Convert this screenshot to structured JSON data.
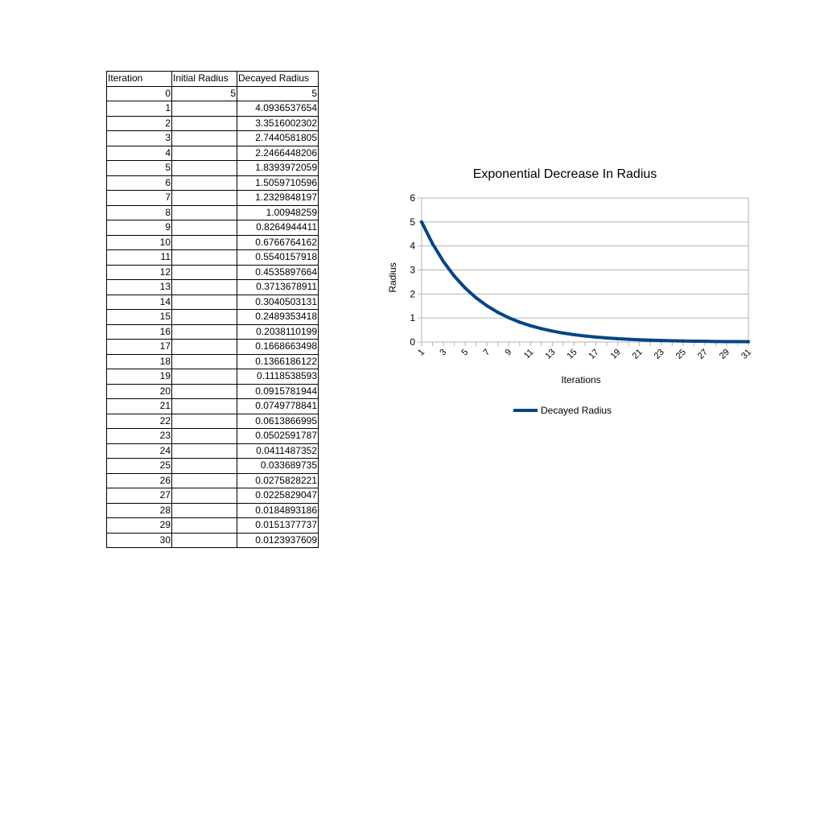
{
  "table": {
    "headers": [
      "Iteration",
      "Initial Radius",
      "Decayed Radius"
    ],
    "rows": [
      [
        "0",
        "5",
        "5"
      ],
      [
        "1",
        "",
        "4.0936537654"
      ],
      [
        "2",
        "",
        "3.3516002302"
      ],
      [
        "3",
        "",
        "2.7440581805"
      ],
      [
        "4",
        "",
        "2.2466448206"
      ],
      [
        "5",
        "",
        "1.8393972059"
      ],
      [
        "6",
        "",
        "1.5059710596"
      ],
      [
        "7",
        "",
        "1.2329848197"
      ],
      [
        "8",
        "",
        "1.00948259"
      ],
      [
        "9",
        "",
        "0.8264944411"
      ],
      [
        "10",
        "",
        "0.6766764162"
      ],
      [
        "11",
        "",
        "0.5540157918"
      ],
      [
        "12",
        "",
        "0.4535897664"
      ],
      [
        "13",
        "",
        "0.3713678911"
      ],
      [
        "14",
        "",
        "0.3040503131"
      ],
      [
        "15",
        "",
        "0.2489353418"
      ],
      [
        "16",
        "",
        "0.2038110199"
      ],
      [
        "17",
        "",
        "0.1668663498"
      ],
      [
        "18",
        "",
        "0.1366186122"
      ],
      [
        "19",
        "",
        "0.1118538593"
      ],
      [
        "20",
        "",
        "0.0915781944"
      ],
      [
        "21",
        "",
        "0.0749778841"
      ],
      [
        "22",
        "",
        "0.0613866995"
      ],
      [
        "23",
        "",
        "0.0502591787"
      ],
      [
        "24",
        "",
        "0.0411487352"
      ],
      [
        "25",
        "",
        "0.033689735"
      ],
      [
        "26",
        "",
        "0.0275828221"
      ],
      [
        "27",
        "",
        "0.0225829047"
      ],
      [
        "28",
        "",
        "0.0184893186"
      ],
      [
        "29",
        "",
        "0.0151377737"
      ],
      [
        "30",
        "",
        "0.0123937609"
      ]
    ]
  },
  "chart_data": {
    "type": "line",
    "title": "Exponential Decrease In Radius",
    "xlabel": "Iterations",
    "ylabel": "Radius",
    "x": [
      1,
      2,
      3,
      4,
      5,
      6,
      7,
      8,
      9,
      10,
      11,
      12,
      13,
      14,
      15,
      16,
      17,
      18,
      19,
      20,
      21,
      22,
      23,
      24,
      25,
      26,
      27,
      28,
      29,
      30,
      31
    ],
    "x_tick_labels": [
      "1",
      "3",
      "5",
      "7",
      "9",
      "11",
      "13",
      "15",
      "17",
      "19",
      "21",
      "23",
      "25",
      "27",
      "29",
      "31"
    ],
    "y_ticks": [
      0,
      1,
      2,
      3,
      4,
      5,
      6
    ],
    "ylim": [
      0,
      6
    ],
    "grid": true,
    "legend_position": "bottom",
    "series": [
      {
        "name": "Decayed Radius",
        "color": "#004586",
        "values": [
          5,
          4.0936537654,
          3.3516002302,
          2.7440581805,
          2.2466448206,
          1.8393972059,
          1.5059710596,
          1.2329848197,
          1.00948259,
          0.8264944411,
          0.6766764162,
          0.5540157918,
          0.4535897664,
          0.3713678911,
          0.3040503131,
          0.2489353418,
          0.2038110199,
          0.1668663498,
          0.1366186122,
          0.1118538593,
          0.0915781944,
          0.0749778841,
          0.0613866995,
          0.0502591787,
          0.0411487352,
          0.033689735,
          0.0275828221,
          0.0225829047,
          0.0184893186,
          0.0151377737,
          0.0123937609
        ]
      }
    ]
  }
}
